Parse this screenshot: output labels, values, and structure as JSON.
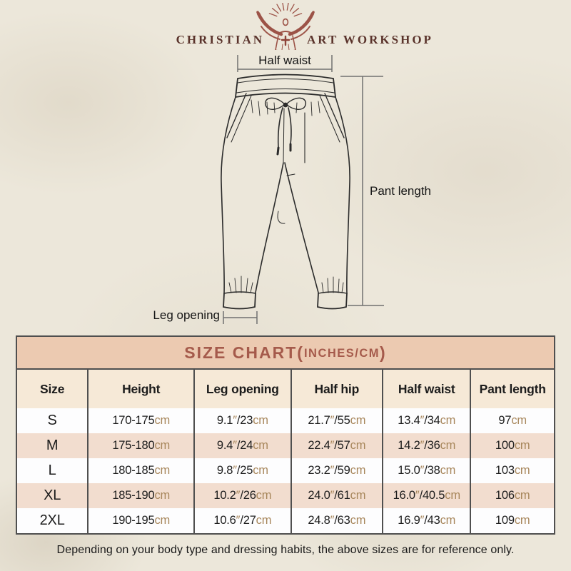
{
  "logo": {
    "name_left": "CHRISTIAN",
    "name_right": "ART WORKSHOP"
  },
  "diagram": {
    "half_waist_label": "Half waist",
    "pant_length_label": "Pant length",
    "leg_opening_label": "Leg opening"
  },
  "size_chart": {
    "title": {
      "main": "SIZE CHART(",
      "sub": "INCHES/CM",
      "close": ")"
    },
    "columns": [
      "Size",
      "Height",
      "Leg opening",
      "Half hip",
      "Half waist",
      "Pant length"
    ],
    "rows": [
      [
        "S",
        "170-175cm",
        "9.1\"/23cm",
        "21.7\"/55cm",
        "13.4\"/34cm",
        "97cm"
      ],
      [
        "M",
        "175-180cm",
        "9.4\"/24cm",
        "22.4\"/57cm",
        "14.2\"/36cm",
        "100cm"
      ],
      [
        "L",
        "180-185cm",
        "9.8\"/25cm",
        "23.2\"/59cm",
        "15.0\"/38cm",
        "103cm"
      ],
      [
        "XL",
        "185-190cm",
        "10.2\"/26cm",
        "24.0\"/61cm",
        "16.0\"/40.5cm",
        "106cm"
      ],
      [
        "2XL",
        "190-195cm",
        "10.6\"/27cm",
        "24.8\"/63cm",
        "16.9\"/43cm",
        "109cm"
      ]
    ]
  },
  "footer": {
    "note": "Depending on your body type and dressing habits, the above sizes are for reference only."
  },
  "colors": {
    "title_bar_bg": "#eccab1",
    "title_text": "#a55a4b",
    "header_row_bg": "#f6e9d7",
    "row_alt_bg": "#f2ddcf",
    "unit_text": "#a8875c",
    "logo_figure": "#9c5347",
    "logo_text": "#5a332b",
    "table_border": "#4f4f4f",
    "measure_line": "#707070"
  }
}
